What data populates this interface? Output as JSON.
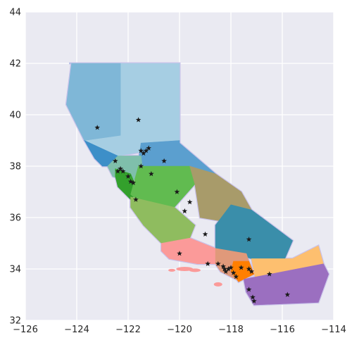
{
  "chart_data": {
    "type": "map",
    "title": "",
    "xlabel": "",
    "ylabel": "",
    "xlim": [
      -126,
      -114
    ],
    "ylim": [
      32,
      44
    ],
    "x_ticks": [
      -126,
      -124,
      -122,
      -120,
      -118,
      -116,
      -114
    ],
    "y_ticks": [
      32,
      34,
      36,
      38,
      40,
      42,
      44
    ],
    "x_tick_labels": [
      "−126",
      "−124",
      "−122",
      "−120",
      "−118",
      "−116",
      "−114"
    ],
    "y_tick_labels": [
      "32",
      "34",
      "36",
      "38",
      "40",
      "42",
      "44"
    ],
    "grid": true,
    "background_color": "#eaeaf2",
    "marker": "star",
    "marker_color": "#1a1a1a",
    "regions": [
      {
        "color": "#a6cee3",
        "path": [
          [
            -124.2,
            42
          ],
          [
            -120,
            42
          ],
          [
            -120,
            39
          ],
          [
            -121.2,
            38.6
          ],
          [
            -122.4,
            38.4
          ],
          [
            -123.7,
            39
          ],
          [
            -124.4,
            40.4
          ],
          [
            -124.2,
            42
          ]
        ]
      },
      {
        "color": "#7fb7d7",
        "path": [
          [
            -124.3,
            42
          ],
          [
            -122.3,
            42
          ],
          [
            -122.3,
            39.2
          ],
          [
            -123.7,
            39
          ],
          [
            -124.4,
            40.4
          ],
          [
            -124.2,
            42
          ]
        ]
      },
      {
        "color": "#5b9fcf",
        "path": [
          [
            -121.5,
            38.9
          ],
          [
            -120,
            39
          ],
          [
            -120,
            38.9
          ],
          [
            -118.6,
            37.7
          ],
          [
            -119.6,
            37.4
          ],
          [
            -121,
            37.6
          ],
          [
            -121.6,
            38.2
          ]
        ]
      },
      {
        "color": "#3d8fc8",
        "path": [
          [
            -123.7,
            39
          ],
          [
            -122.4,
            38.4
          ],
          [
            -122.4,
            38.0
          ],
          [
            -123.0,
            38.0
          ],
          [
            -123.3,
            38.3
          ]
        ]
      },
      {
        "color": "#7fbfab",
        "path": [
          [
            -122.4,
            38.4
          ],
          [
            -121.5,
            38.4
          ],
          [
            -121.4,
            37.6
          ],
          [
            -122.0,
            37.4
          ],
          [
            -122.6,
            37.6
          ],
          [
            -122.8,
            38.0
          ]
        ]
      },
      {
        "color": "#33a02c",
        "path": [
          [
            -122.5,
            37.9
          ],
          [
            -121.9,
            37.7
          ],
          [
            -121.6,
            37.0
          ],
          [
            -121.9,
            36.7
          ],
          [
            -122.4,
            37.2
          ],
          [
            -122.5,
            37.6
          ]
        ]
      },
      {
        "color": "#61bb50",
        "path": [
          [
            -121.6,
            38.0
          ],
          [
            -119.6,
            38.0
          ],
          [
            -119.4,
            37.3
          ],
          [
            -120.2,
            36.4
          ],
          [
            -121.2,
            36.3
          ],
          [
            -121.9,
            36.9
          ]
        ]
      },
      {
        "color": "#8fbc5f",
        "path": [
          [
            -121.9,
            36.8
          ],
          [
            -120.2,
            36.4
          ],
          [
            -119.4,
            35.7
          ],
          [
            -119.6,
            35.2
          ],
          [
            -120.7,
            35.0
          ],
          [
            -121.4,
            35.7
          ],
          [
            -121.9,
            36.4
          ]
        ]
      },
      {
        "color": "#a89b6a",
        "path": [
          [
            -119.6,
            38.0
          ],
          [
            -118.6,
            37.7
          ],
          [
            -117.6,
            37.0
          ],
          [
            -117.2,
            36.3
          ],
          [
            -118.0,
            35.8
          ],
          [
            -119.2,
            36.0
          ],
          [
            -119.4,
            37.3
          ]
        ]
      },
      {
        "color": "#3a8eaa",
        "path": [
          [
            -118.0,
            36.5
          ],
          [
            -117.2,
            36.3
          ],
          [
            -115.6,
            35.1
          ],
          [
            -115.9,
            34.4
          ],
          [
            -117.2,
            34.4
          ],
          [
            -118.6,
            34.8
          ],
          [
            -118.6,
            35.7
          ]
        ]
      },
      {
        "color": "#fb9a99",
        "path": [
          [
            -120.7,
            35.0
          ],
          [
            -119.6,
            35.2
          ],
          [
            -118.6,
            34.8
          ],
          [
            -118.5,
            34.2
          ],
          [
            -119.3,
            34.2
          ],
          [
            -120.4,
            34.4
          ],
          [
            -120.7,
            34.7
          ]
        ]
      },
      {
        "color": "#e0997a",
        "path": [
          [
            -118.6,
            34.8
          ],
          [
            -117.4,
            34.6
          ],
          [
            -117.2,
            34.0
          ],
          [
            -117.8,
            33.6
          ],
          [
            -118.4,
            33.9
          ],
          [
            -118.6,
            34.2
          ]
        ]
      },
      {
        "color": "#ff7f00",
        "path": [
          [
            -117.9,
            34.3
          ],
          [
            -117.3,
            34.3
          ],
          [
            -117.1,
            33.8
          ],
          [
            -117.7,
            33.5
          ],
          [
            -118.0,
            33.9
          ]
        ]
      },
      {
        "color": "#fdbf6f",
        "path": [
          [
            -117.2,
            34.4
          ],
          [
            -115.6,
            34.4
          ],
          [
            -114.6,
            34.9
          ],
          [
            -114.4,
            34.2
          ],
          [
            -115.4,
            33.6
          ],
          [
            -117.0,
            33.4
          ],
          [
            -117.1,
            33.9
          ]
        ]
      },
      {
        "color": "#9b6fc0",
        "path": [
          [
            -117.5,
            33.6
          ],
          [
            -114.4,
            34.2
          ],
          [
            -114.2,
            33.8
          ],
          [
            -114.6,
            32.7
          ],
          [
            -117.1,
            32.6
          ],
          [
            -117.4,
            33.1
          ]
        ]
      }
    ],
    "points": [
      {
        "lon": -123.2,
        "lat": 39.5
      },
      {
        "lon": -121.6,
        "lat": 39.8
      },
      {
        "lon": -121.5,
        "lat": 38.6
      },
      {
        "lon": -121.3,
        "lat": 38.6
      },
      {
        "lon": -121.4,
        "lat": 38.5
      },
      {
        "lon": -121.2,
        "lat": 38.7
      },
      {
        "lon": -120.6,
        "lat": 38.2
      },
      {
        "lon": -122.5,
        "lat": 38.2
      },
      {
        "lon": -121.5,
        "lat": 38.0
      },
      {
        "lon": -122.3,
        "lat": 37.9
      },
      {
        "lon": -122.4,
        "lat": 37.8
      },
      {
        "lon": -122.2,
        "lat": 37.8
      },
      {
        "lon": -122.0,
        "lat": 37.6
      },
      {
        "lon": -121.1,
        "lat": 37.7
      },
      {
        "lon": -121.9,
        "lat": 37.4
      },
      {
        "lon": -121.8,
        "lat": 37.35
      },
      {
        "lon": -120.1,
        "lat": 37.0
      },
      {
        "lon": -121.7,
        "lat": 36.7
      },
      {
        "lon": -119.6,
        "lat": 36.6
      },
      {
        "lon": -119.8,
        "lat": 36.25
      },
      {
        "lon": -119.0,
        "lat": 35.35
      },
      {
        "lon": -117.3,
        "lat": 35.15
      },
      {
        "lon": -120.0,
        "lat": 34.6
      },
      {
        "lon": -118.9,
        "lat": 34.2
      },
      {
        "lon": -118.5,
        "lat": 34.2
      },
      {
        "lon": -118.3,
        "lat": 34.1
      },
      {
        "lon": -118.25,
        "lat": 34.0
      },
      {
        "lon": -118.1,
        "lat": 34.0
      },
      {
        "lon": -118.2,
        "lat": 33.9
      },
      {
        "lon": -117.9,
        "lat": 33.85
      },
      {
        "lon": -118.0,
        "lat": 34.05
      },
      {
        "lon": -117.8,
        "lat": 33.7
      },
      {
        "lon": -117.6,
        "lat": 34.05
      },
      {
        "lon": -117.3,
        "lat": 34.0
      },
      {
        "lon": -117.2,
        "lat": 33.9
      },
      {
        "lon": -116.5,
        "lat": 33.8
      },
      {
        "lon": -117.3,
        "lat": 33.2
      },
      {
        "lon": -117.15,
        "lat": 32.9
      },
      {
        "lon": -117.1,
        "lat": 32.75
      },
      {
        "lon": -115.8,
        "lat": 33.0
      }
    ]
  }
}
